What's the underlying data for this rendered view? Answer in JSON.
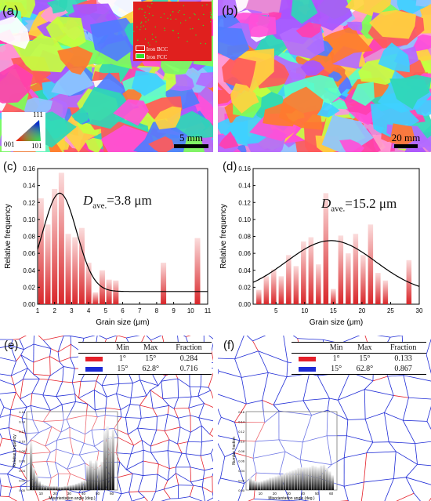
{
  "panels": {
    "a": {
      "label": "(a)",
      "scale_bar": "5 mm",
      "phase_legend": [
        {
          "name": "Iron BCC",
          "color": "#e0201e"
        },
        {
          "name": "Iron FCC",
          "color": "#2ee02a"
        }
      ],
      "ipf_key": {
        "top": "111",
        "left": "001",
        "right": "101"
      }
    },
    "b": {
      "label": "(b)",
      "scale_bar": "20 mm"
    },
    "c": {
      "label": "(c)",
      "annotation_symbol": "D",
      "annotation_subscript": "ave.",
      "annotation_value": "=3.8 μm"
    },
    "d": {
      "label": "(d)",
      "annotation_symbol": "D",
      "annotation_subscript": "ave.",
      "annotation_value": "=15.2 μm"
    },
    "e": {
      "label": "(e)",
      "inset_ylabel": "Relative frequency",
      "inset_xlabel": "Misorientation angle (deg.)"
    },
    "f": {
      "label": "(f)",
      "inset_ylabel": "Number fraction",
      "inset_xlabel": "Misorientation angle (deg.)"
    }
  },
  "tables": {
    "e": {
      "headers": [
        "",
        "Min",
        "Max",
        "Fraction"
      ],
      "rows": [
        {
          "color": "#e5202a",
          "min": "1°",
          "max": "15°",
          "fraction": "0.284"
        },
        {
          "color": "#1e2bd6",
          "min": "15°",
          "max": "62.8°",
          "fraction": "0.716"
        }
      ]
    },
    "f": {
      "headers": [
        "",
        "Min",
        "Max",
        "Fraction"
      ],
      "rows": [
        {
          "color": "#e5202a",
          "min": "1°",
          "max": "15°",
          "fraction": "0.133"
        },
        {
          "color": "#1e2bd6",
          "min": "15°",
          "max": "62.8°",
          "fraction": "0.867"
        }
      ]
    }
  },
  "chart_data": [
    {
      "type": "bar",
      "panel": "c",
      "xlabel": "Grain size (μm)",
      "ylabel": "Relative frequency",
      "xlim": [
        1,
        11
      ],
      "ylim": [
        0,
        0.16
      ],
      "xticks": [
        "1",
        "2",
        "3",
        "4",
        "5",
        "6",
        "7",
        "8",
        "9",
        "10",
        "11"
      ],
      "yticks": [
        "0.00",
        "0.02",
        "0.04",
        "0.06",
        "0.08",
        "0.10",
        "0.12",
        "0.14",
        "0.16"
      ],
      "bar_color": "#d9262a",
      "x": [
        1.2,
        1.6,
        2.0,
        2.4,
        2.8,
        3.2,
        3.6,
        4.0,
        4.4,
        4.8,
        5.2,
        5.6,
        6.0,
        8.4,
        10.4
      ],
      "values": [
        0.125,
        0.094,
        0.136,
        0.155,
        0.083,
        0.079,
        0.09,
        0.049,
        0.014,
        0.04,
        0.029,
        0.028,
        0.0,
        0.049,
        0.078
      ],
      "fit": {
        "type": "gaussian",
        "peak_x": 2.3,
        "peak_y": 0.131,
        "sigma": 1.0,
        "baseline": 0.015
      }
    },
    {
      "type": "bar",
      "panel": "d",
      "xlabel": "Grain size (μm)",
      "ylabel": "Relative frequency",
      "xlim": [
        1,
        30
      ],
      "ylim": [
        0,
        0.16
      ],
      "xticks": [
        "5",
        "10",
        "15",
        "20",
        "25",
        "30"
      ],
      "yticks": [
        "0.00",
        "0.02",
        "0.04",
        "0.06",
        "0.08",
        "0.10",
        "0.12",
        "0.14",
        "0.16"
      ],
      "bar_color": "#d9262a",
      "x": [
        2,
        3.3,
        4.6,
        5.9,
        7.2,
        8.5,
        9.8,
        11.1,
        12.4,
        13.7,
        15,
        16.3,
        17.6,
        18.9,
        20.2,
        21.5,
        22.8,
        24.1,
        25.4,
        28.2
      ],
      "values": [
        0.017,
        0.033,
        0.041,
        0.033,
        0.058,
        0.045,
        0.074,
        0.079,
        0.047,
        0.131,
        0.018,
        0.081,
        0.06,
        0.083,
        0.058,
        0.094,
        0.037,
        0.028,
        0.0,
        0.052
      ],
      "fit": {
        "type": "gaussian",
        "peak_x": 14.6,
        "peak_y": 0.075,
        "sigma": 7.8,
        "baseline": 0.012
      }
    },
    {
      "type": "bar",
      "panel": "e-inset",
      "xlabel": "Misorientation angle (deg.)",
      "ylabel": "Relative frequency",
      "xticks": [
        "10",
        "20",
        "30",
        "40",
        "50",
        "60"
      ],
      "yticks": [
        "0.00",
        "0.02",
        "0.04",
        "0.06",
        "0.08",
        "0.10",
        "0.12",
        "0.14",
        "0.16"
      ],
      "ylim": [
        0,
        0.16
      ],
      "x": [
        3,
        5,
        7,
        9,
        11,
        13,
        15,
        17,
        19,
        21,
        23,
        25,
        27,
        29,
        31,
        33,
        35,
        37,
        39,
        41,
        43,
        45,
        47,
        49,
        51,
        53,
        55,
        57,
        59,
        61
      ],
      "values": [
        0.098,
        0.045,
        0.03,
        0.018,
        0.012,
        0.01,
        0.009,
        0.008,
        0.008,
        0.008,
        0.007,
        0.007,
        0.008,
        0.009,
        0.01,
        0.011,
        0.013,
        0.015,
        0.018,
        0.02,
        0.05,
        0.06,
        0.055,
        0.06,
        0.048,
        0.058,
        0.12,
        0.13,
        0.11,
        0.125
      ]
    },
    {
      "type": "bar",
      "panel": "f-inset",
      "xlabel": "Misorientation angle (deg.)",
      "ylabel": "Number fraction",
      "xticks": [
        "10",
        "20",
        "30",
        "40",
        "50",
        "60"
      ],
      "yticks": [
        "0.00",
        "0.02",
        "0.04",
        "0.06",
        "0.08",
        "0.10",
        "0.12",
        "0.14",
        "0.16"
      ],
      "ylim": [
        0,
        0.16
      ],
      "x": [
        3,
        5,
        7,
        9,
        11,
        13,
        15,
        17,
        19,
        21,
        23,
        25,
        27,
        29,
        31,
        33,
        35,
        37,
        39,
        41,
        43,
        45,
        47,
        49,
        51,
        53,
        55,
        57,
        59,
        61
      ],
      "values": [
        0.025,
        0.02,
        0.018,
        0.017,
        0.018,
        0.02,
        0.022,
        0.025,
        0.026,
        0.028,
        0.03,
        0.032,
        0.034,
        0.036,
        0.038,
        0.04,
        0.042,
        0.045,
        0.046,
        0.046,
        0.046,
        0.047,
        0.05,
        0.048,
        0.046,
        0.05,
        0.051,
        0.045,
        0.038,
        0.03
      ]
    }
  ]
}
